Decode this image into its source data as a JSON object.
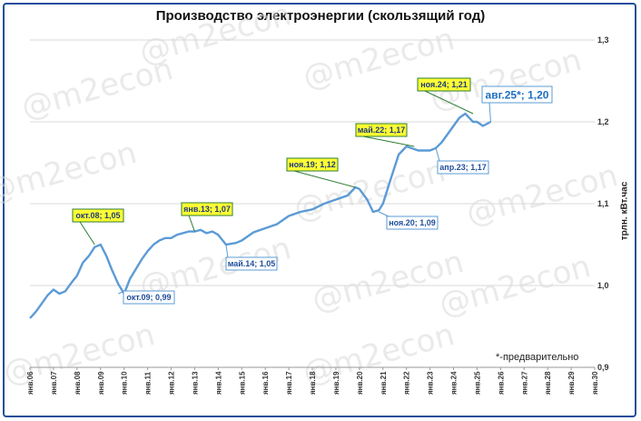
{
  "watermark": "@m2econ",
  "note": "*-предварительно",
  "chart_data": {
    "type": "line",
    "title": "Производство электроэнергии (скользящий год)",
    "ylabel": "трлн. кВт.час",
    "xlabel": "",
    "ylim": [
      0.9,
      1.3
    ],
    "yticks": [
      "0,9",
      "1,0",
      "1,1",
      "1,2",
      "1,3"
    ],
    "xticks": [
      "янв.06",
      "янв.07",
      "янв.08",
      "янв.09",
      "янв.10",
      "янв.11",
      "янв.12",
      "янв.13",
      "янв.14",
      "янв.15",
      "янв.16",
      "янв.17",
      "янв.18",
      "янв.19",
      "янв.20",
      "янв.21",
      "янв.22",
      "янв.23",
      "янв.24",
      "янв.25",
      "янв.26",
      "янв.27",
      "янв.28",
      "янв.29",
      "янв.30"
    ],
    "grid": "horizontal",
    "series": [
      {
        "color": "#5b9bd5",
        "x": [
          2006.0,
          2006.25,
          2006.5,
          2006.75,
          2007.0,
          2007.25,
          2007.5,
          2007.75,
          2008.0,
          2008.25,
          2008.5,
          2008.75,
          2009.0,
          2009.25,
          2009.5,
          2009.75,
          2010.0,
          2010.25,
          2010.5,
          2010.75,
          2011.0,
          2011.25,
          2011.5,
          2011.75,
          2012.0,
          2012.25,
          2012.5,
          2012.75,
          2013.0,
          2013.25,
          2013.5,
          2013.75,
          2014.0,
          2014.33,
          2014.75,
          2015.0,
          2015.5,
          2016.0,
          2016.5,
          2017.0,
          2017.5,
          2018.0,
          2018.5,
          2019.0,
          2019.5,
          2019.83,
          2020.0,
          2020.33,
          2020.58,
          2020.83,
          2021.0,
          2021.33,
          2021.67,
          2022.0,
          2022.5,
          2023.0,
          2023.25,
          2023.5,
          2023.75,
          2024.0,
          2024.25,
          2024.5,
          2024.83,
          2025.0,
          2025.25,
          2025.58
        ],
        "y": [
          0.96,
          0.968,
          0.978,
          0.988,
          0.995,
          0.99,
          0.993,
          1.003,
          1.012,
          1.028,
          1.036,
          1.047,
          1.05,
          1.036,
          1.018,
          1.002,
          0.99,
          1.008,
          1.02,
          1.032,
          1.042,
          1.05,
          1.055,
          1.058,
          1.058,
          1.062,
          1.064,
          1.066,
          1.066,
          1.068,
          1.064,
          1.066,
          1.062,
          1.05,
          1.052,
          1.055,
          1.065,
          1.07,
          1.075,
          1.085,
          1.09,
          1.093,
          1.1,
          1.105,
          1.11,
          1.12,
          1.118,
          1.105,
          1.09,
          1.092,
          1.1,
          1.13,
          1.16,
          1.17,
          1.165,
          1.165,
          1.168,
          1.175,
          1.185,
          1.195,
          1.205,
          1.21,
          1.2,
          1.2,
          1.195,
          1.2
        ]
      }
    ],
    "annotations": [
      {
        "label": "окт.08; 1,05",
        "x": 2008.75,
        "y": 1.05,
        "style": "peak"
      },
      {
        "label": "окт.09; 0,99",
        "x": 2009.75,
        "y": 0.99,
        "style": "trough"
      },
      {
        "label": "янв.13; 1,07",
        "x": 2013.0,
        "y": 1.066,
        "style": "peak"
      },
      {
        "label": "май.14; 1,05",
        "x": 2014.33,
        "y": 1.05,
        "style": "trough"
      },
      {
        "label": "ноя.19; 1,12",
        "x": 2019.83,
        "y": 1.12,
        "style": "peak"
      },
      {
        "label": "ноя.20; 1,09",
        "x": 2020.83,
        "y": 1.09,
        "style": "trough"
      },
      {
        "label": "май.22; 1,17",
        "x": 2022.33,
        "y": 1.17,
        "style": "peak"
      },
      {
        "label": "апр.23; 1,17",
        "x": 2023.25,
        "y": 1.168,
        "style": "trough"
      },
      {
        "label": "ноя.24; 1,21",
        "x": 2024.83,
        "y": 1.21,
        "style": "peak"
      },
      {
        "label": "авг.25*; 1,20",
        "x": 2025.58,
        "y": 1.2,
        "style": "current"
      }
    ]
  }
}
